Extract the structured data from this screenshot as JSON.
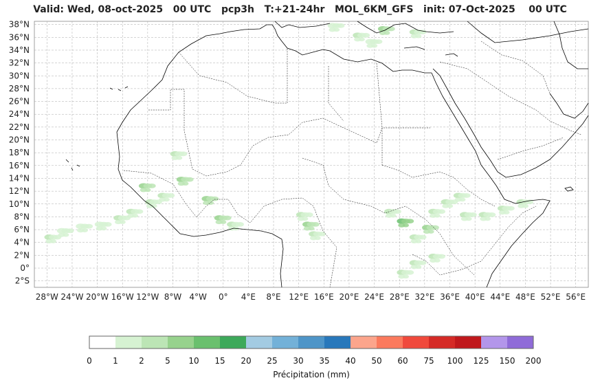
{
  "title": "Valid: Wed, 08-oct-2025   00 UTC   pcp3h   T:+21-24hr   MOL_6KM_GFS   init: 07-Oct-2025    00 UTC",
  "map": {
    "lon_range": [
      -30,
      58
    ],
    "lat_range": [
      -3,
      38.5
    ],
    "lat_ticks": [
      "38°N",
      "36°N",
      "34°N",
      "32°N",
      "30°N",
      "28°N",
      "26°N",
      "24°N",
      "22°N",
      "20°N",
      "18°N",
      "16°N",
      "14°N",
      "12°N",
      "10°N",
      "8°N",
      "6°N",
      "4°N",
      "2°N",
      "0°",
      "2°S"
    ],
    "lon_ticks": [
      "28°W",
      "24°W",
      "20°W",
      "16°W",
      "12°W",
      "8°W",
      "4°W",
      "0°",
      "4°E",
      "8°E",
      "12°E",
      "16°E",
      "20°E",
      "24°E",
      "28°E",
      "32°E",
      "36°E",
      "40°E",
      "44°E",
      "48°E",
      "52°E",
      "56°E"
    ],
    "gridlines": true,
    "precip_cells": [
      {
        "lon": -25,
        "lat": 5.5,
        "level": 1
      },
      {
        "lon": -22,
        "lat": 6.2,
        "level": 1
      },
      {
        "lon": -19,
        "lat": 6.5,
        "level": 1
      },
      {
        "lon": -27,
        "lat": 4.5,
        "level": 2
      },
      {
        "lon": -16,
        "lat": 7.5,
        "level": 2
      },
      {
        "lon": -14,
        "lat": 8.5,
        "level": 2
      },
      {
        "lon": -12,
        "lat": 12.5,
        "level": 3
      },
      {
        "lon": -11,
        "lat": 10,
        "level": 2
      },
      {
        "lon": -9,
        "lat": 11,
        "level": 2
      },
      {
        "lon": -6,
        "lat": 13.5,
        "level": 3
      },
      {
        "lon": -7,
        "lat": 17.5,
        "level": 2
      },
      {
        "lon": -2,
        "lat": 10.5,
        "level": 3
      },
      {
        "lon": 0,
        "lat": 7.5,
        "level": 3
      },
      {
        "lon": 2,
        "lat": 6.5,
        "level": 2
      },
      {
        "lon": 14,
        "lat": 6.5,
        "level": 3
      },
      {
        "lon": 13,
        "lat": 8,
        "level": 2
      },
      {
        "lon": 15,
        "lat": 5,
        "level": 2
      },
      {
        "lon": 29,
        "lat": 7,
        "level": 4
      },
      {
        "lon": 27,
        "lat": 8.5,
        "level": 2
      },
      {
        "lon": 31,
        "lat": 4.5,
        "level": 2
      },
      {
        "lon": 33,
        "lat": 6,
        "level": 3
      },
      {
        "lon": 34,
        "lat": 8.5,
        "level": 2
      },
      {
        "lon": 36,
        "lat": 10,
        "level": 2
      },
      {
        "lon": 38,
        "lat": 11,
        "level": 2
      },
      {
        "lon": 39,
        "lat": 8,
        "level": 2
      },
      {
        "lon": 42,
        "lat": 8,
        "level": 2
      },
      {
        "lon": 45,
        "lat": 9,
        "level": 2
      },
      {
        "lon": 48,
        "lat": 10,
        "level": 2
      },
      {
        "lon": 31,
        "lat": 0.5,
        "level": 2
      },
      {
        "lon": 34,
        "lat": 1.5,
        "level": 2
      },
      {
        "lon": 29,
        "lat": -1,
        "level": 2
      },
      {
        "lon": 22,
        "lat": 36,
        "level": 2
      },
      {
        "lon": 26,
        "lat": 37,
        "level": 3
      },
      {
        "lon": 31,
        "lat": 36.5,
        "level": 2
      },
      {
        "lon": 18,
        "lat": 37.5,
        "level": 1
      },
      {
        "lon": 24,
        "lat": 35,
        "level": 1
      }
    ]
  },
  "colorbar": {
    "label": "Précipitation (mm)",
    "ticks": [
      "0",
      "1",
      "2",
      "5",
      "10",
      "15",
      "20",
      "25",
      "30",
      "35",
      "40",
      "50",
      "60",
      "75",
      "100",
      "125",
      "150",
      "200"
    ],
    "colors": [
      "#ffffff",
      "#d6f2d2",
      "#bce5b5",
      "#97d28d",
      "#6ac06e",
      "#3da95a",
      "#a3cbe2",
      "#73b1d8",
      "#4e95c8",
      "#2878bb",
      "#fca58c",
      "#fb7a5d",
      "#f0493c",
      "#d52a26",
      "#c0181c",
      "#b396ea",
      "#8f6bd8",
      "#4b0284"
    ]
  }
}
